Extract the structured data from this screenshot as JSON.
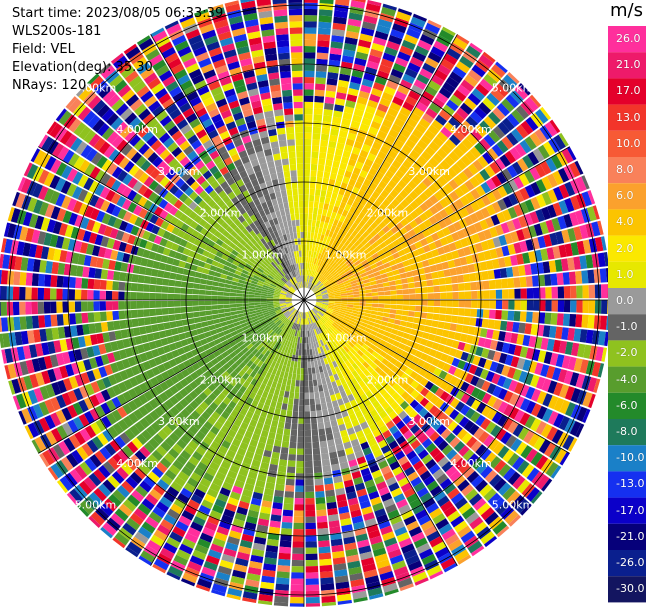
{
  "header": {
    "start_time": "Start time: 2023/08/05 06:33:39",
    "instrument": "WLS200s-181",
    "field": "Field: VEL",
    "elevation": "Elevation(deg): 35.30",
    "nrays": "NRays: 120"
  },
  "chart_data": {
    "type": "heatmap",
    "projection": "polar PPI",
    "rays": 120,
    "range_rings_km": [
      1,
      2,
      3,
      4,
      5
    ],
    "ring_labels": [
      "1.00km",
      "2.00km",
      "3.00km",
      "4.00km",
      "5.00km"
    ],
    "max_range_km": 5.2,
    "colorbar": {
      "unit": "m/s",
      "ticks": [
        "26.0",
        "21.0",
        "17.0",
        "13.0",
        "10.0",
        "8.0",
        "6.0",
        "4.0",
        "2.0",
        "1.0",
        "0.0",
        "-1.0",
        "-2.0",
        "-4.0",
        "-6.0",
        "-8.0",
        "-10.0",
        "-13.0",
        "-17.0",
        "-21.0",
        "-26.0",
        "-30.0"
      ],
      "colors": [
        "#ff2f9c",
        "#ee1a6a",
        "#e4002b",
        "#f2352a",
        "#f75a35",
        "#f9815a",
        "#fba12d",
        "#fcc400",
        "#fbe800",
        "#e7e800",
        "#9a9a9a",
        "#646464",
        "#8fc21f",
        "#589d2d",
        "#238a2a",
        "#1e7a5b",
        "#1a80c8",
        "#1530f0",
        "#0b00c9",
        "#06007a",
        "#0a1f8e",
        "#131560"
      ]
    }
  }
}
